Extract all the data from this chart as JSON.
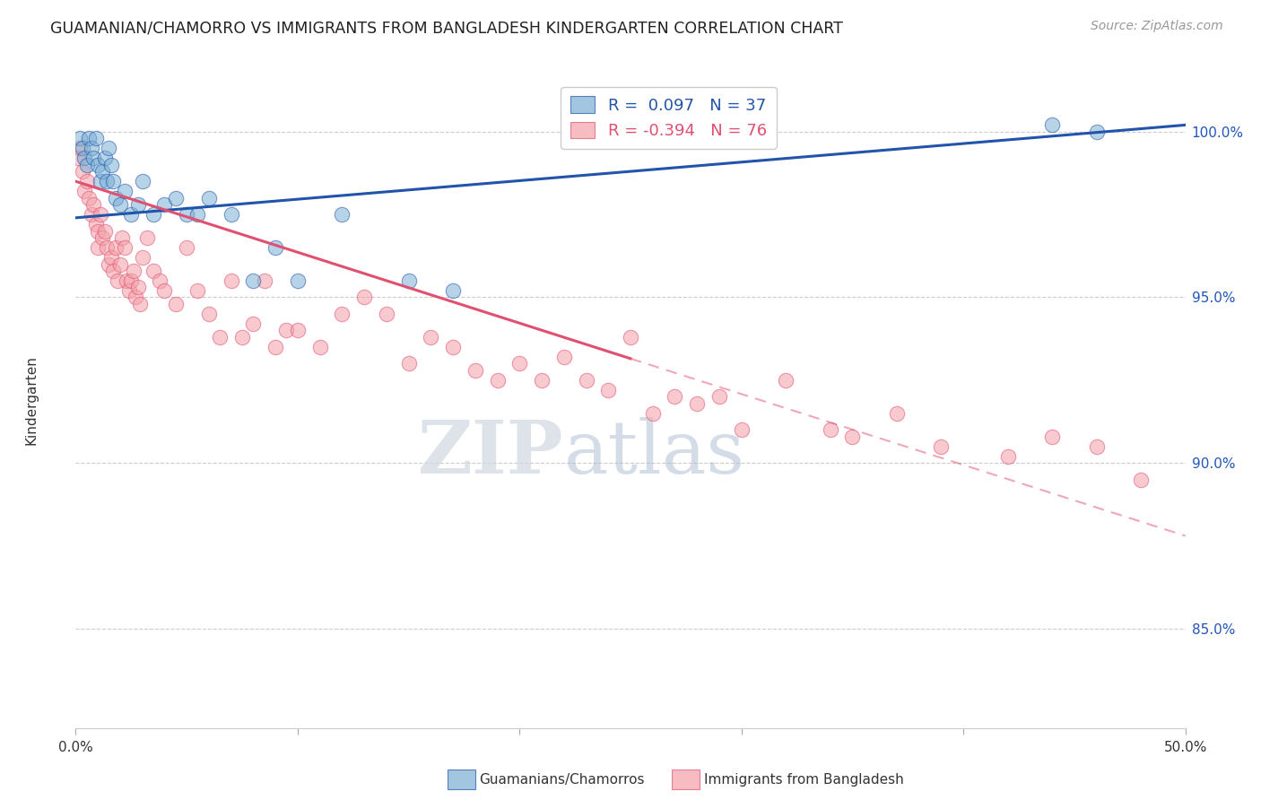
{
  "title": "GUAMANIAN/CHAMORRO VS IMMIGRANTS FROM BANGLADESH KINDERGARTEN CORRELATION CHART",
  "source": "Source: ZipAtlas.com",
  "ylabel": "Kindergarten",
  "y_ticks": [
    85.0,
    90.0,
    95.0,
    100.0
  ],
  "x_min": 0.0,
  "x_max": 50.0,
  "y_min": 82.0,
  "y_max": 101.8,
  "blue_r": 0.097,
  "blue_n": 37,
  "pink_r": -0.394,
  "pink_n": 76,
  "blue_color": "#7BAFD4",
  "pink_color": "#F4A0A8",
  "blue_line_color": "#2255AA",
  "pink_line_color": "#E05070",
  "legend_blue_label": "R =  0.097   N = 37",
  "legend_pink_label": "R = -0.394   N = 76",
  "watermark_zip": "ZIP",
  "watermark_atlas": "atlas",
  "blue_line_x0": 0.0,
  "blue_line_y0": 97.4,
  "blue_line_x1": 50.0,
  "blue_line_y1": 100.2,
  "pink_line_x0": 0.0,
  "pink_line_y0": 98.5,
  "pink_line_x1": 50.0,
  "pink_line_y1": 87.8,
  "pink_solid_end_x": 25.0,
  "blue_scatter_x": [
    0.2,
    0.3,
    0.4,
    0.5,
    0.6,
    0.7,
    0.8,
    0.9,
    1.0,
    1.1,
    1.2,
    1.3,
    1.4,
    1.5,
    1.6,
    1.7,
    1.8,
    2.0,
    2.2,
    2.5,
    2.8,
    3.0,
    3.5,
    4.0,
    4.5,
    5.0,
    5.5,
    6.0,
    7.0,
    8.0,
    9.0,
    10.0,
    12.0,
    15.0,
    17.0,
    44.0,
    46.0
  ],
  "blue_scatter_y": [
    99.8,
    99.5,
    99.2,
    99.0,
    99.8,
    99.5,
    99.2,
    99.8,
    99.0,
    98.5,
    98.8,
    99.2,
    98.5,
    99.5,
    99.0,
    98.5,
    98.0,
    97.8,
    98.2,
    97.5,
    97.8,
    98.5,
    97.5,
    97.8,
    98.0,
    97.5,
    97.5,
    98.0,
    97.5,
    95.5,
    96.5,
    95.5,
    97.5,
    95.5,
    95.2,
    100.2,
    100.0
  ],
  "pink_scatter_x": [
    0.1,
    0.2,
    0.3,
    0.4,
    0.5,
    0.6,
    0.7,
    0.8,
    0.9,
    1.0,
    1.0,
    1.1,
    1.2,
    1.3,
    1.4,
    1.5,
    1.6,
    1.7,
    1.8,
    1.9,
    2.0,
    2.1,
    2.2,
    2.3,
    2.4,
    2.5,
    2.6,
    2.7,
    2.8,
    2.9,
    3.0,
    3.2,
    3.5,
    3.8,
    4.0,
    4.5,
    5.0,
    5.5,
    6.0,
    6.5,
    7.0,
    7.5,
    8.0,
    8.5,
    9.0,
    9.5,
    10.0,
    11.0,
    12.0,
    13.0,
    14.0,
    15.0,
    16.0,
    17.0,
    18.0,
    19.0,
    20.0,
    21.0,
    22.0,
    23.0,
    24.0,
    25.0,
    26.0,
    27.0,
    28.0,
    29.0,
    30.0,
    32.0,
    34.0,
    35.0,
    37.0,
    39.0,
    42.0,
    44.0,
    46.0,
    48.0
  ],
  "pink_scatter_y": [
    99.2,
    99.5,
    98.8,
    98.2,
    98.5,
    98.0,
    97.5,
    97.8,
    97.2,
    97.0,
    96.5,
    97.5,
    96.8,
    97.0,
    96.5,
    96.0,
    96.2,
    95.8,
    96.5,
    95.5,
    96.0,
    96.8,
    96.5,
    95.5,
    95.2,
    95.5,
    95.8,
    95.0,
    95.3,
    94.8,
    96.2,
    96.8,
    95.8,
    95.5,
    95.2,
    94.8,
    96.5,
    95.2,
    94.5,
    93.8,
    95.5,
    93.8,
    94.2,
    95.5,
    93.5,
    94.0,
    94.0,
    93.5,
    94.5,
    95.0,
    94.5,
    93.0,
    93.8,
    93.5,
    92.8,
    92.5,
    93.0,
    92.5,
    93.2,
    92.5,
    92.2,
    93.8,
    91.5,
    92.0,
    91.8,
    92.0,
    91.0,
    92.5,
    91.0,
    90.8,
    91.5,
    90.5,
    90.2,
    90.8,
    90.5,
    89.5
  ]
}
